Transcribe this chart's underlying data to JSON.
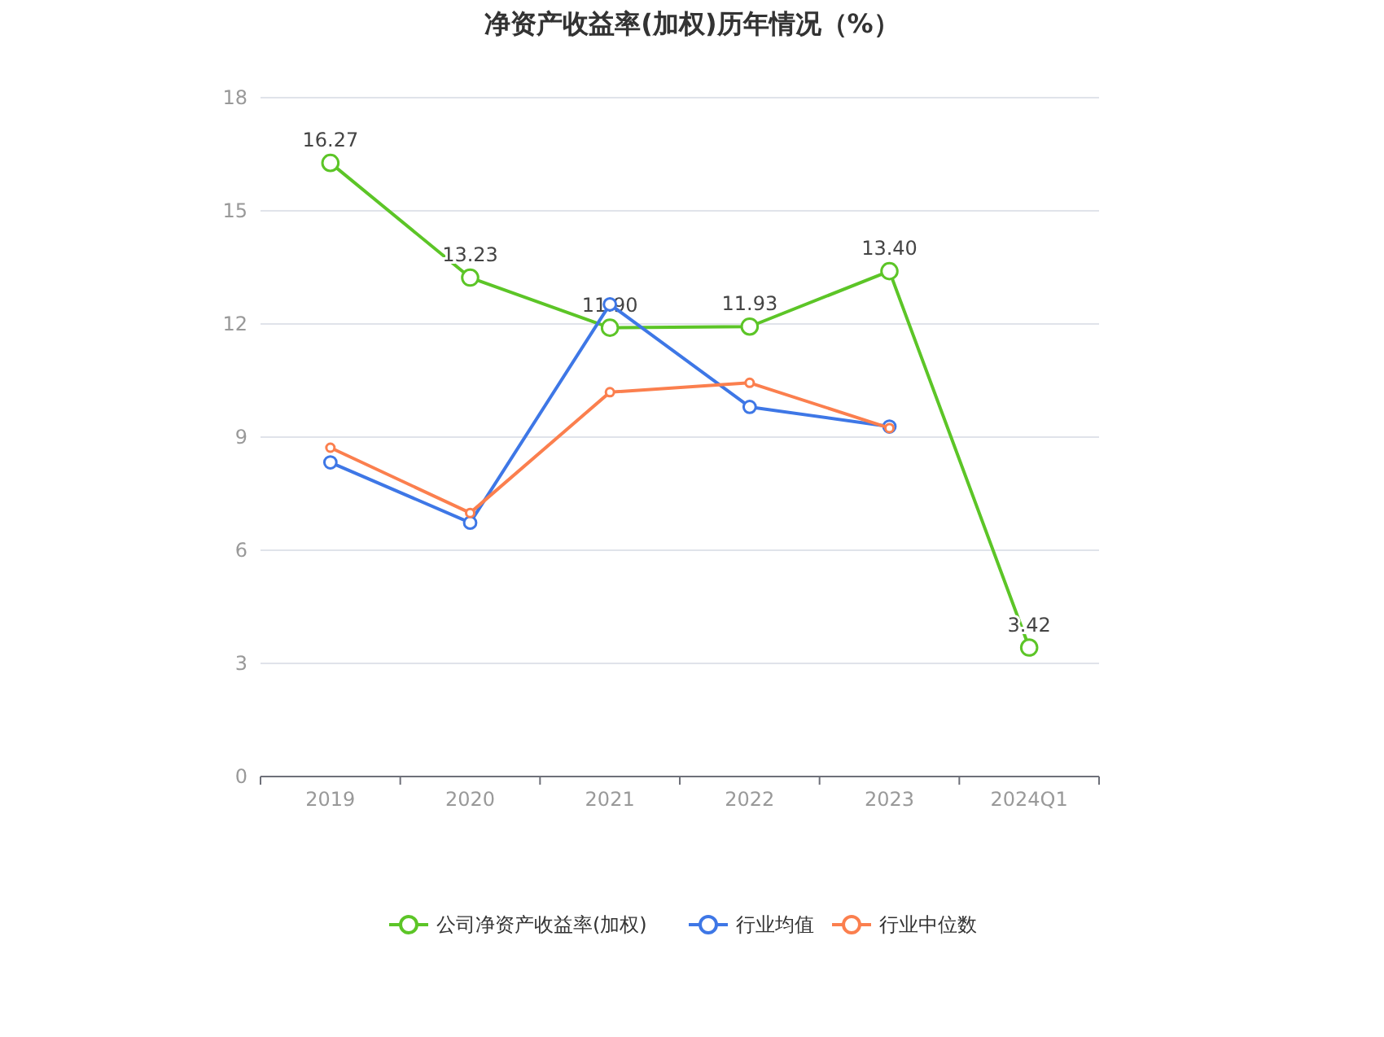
{
  "chart_data": {
    "type": "line",
    "title": "净资产收益率(加权)历年情况（%）",
    "categories": [
      "2019",
      "2020",
      "2021",
      "2022",
      "2023",
      "2024Q1"
    ],
    "series": [
      {
        "name": "公司净资产收益率(加权)",
        "color": "#5cc527",
        "values": [
          16.27,
          13.23,
          11.9,
          11.93,
          13.4,
          3.42
        ],
        "value_labels": [
          "16.27",
          "13.23",
          "11.90",
          "11.93",
          "13.40",
          "3.42"
        ]
      },
      {
        "name": "行业均值",
        "color": "#3e77e6",
        "values": [
          8.33,
          6.73,
          12.52,
          9.8,
          9.28,
          null
        ]
      },
      {
        "name": "行业中位数",
        "color": "#fb7f4e",
        "values": [
          8.72,
          6.99,
          10.19,
          10.44,
          9.24,
          null
        ]
      }
    ],
    "ylim": [
      0,
      18
    ],
    "yticks": [
      0,
      3,
      6,
      9,
      12,
      15,
      18
    ],
    "grid": "y",
    "legend": "bottom",
    "marker": "circle",
    "line_style": "solid"
  }
}
